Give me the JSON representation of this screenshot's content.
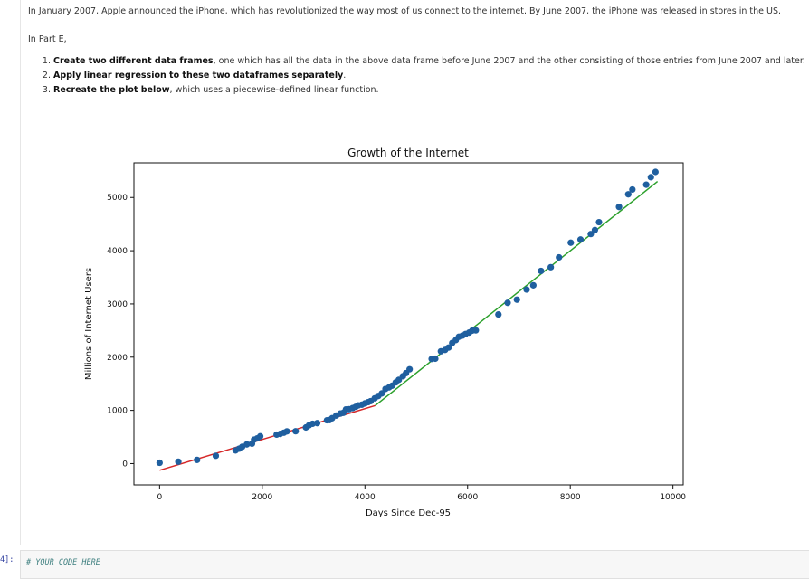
{
  "markdown": {
    "intro": "In January 2007, Apple announced the iPhone, which has revolutionized the way most of us connect to the internet. By June 2007, the iPhone was released in stores in the US.",
    "part_label": "In Part E,",
    "steps": [
      {
        "bold": "Create two different data frames",
        "rest": ", one which has all the data in the above data frame before June 2007 and the other consisting of those entries from June 2007 and later."
      },
      {
        "bold": "Apply linear regression to these two dataframes separately",
        "rest": "."
      },
      {
        "bold": "Recreate the plot below",
        "rest": ", which uses a piecewise-defined linear function."
      }
    ]
  },
  "code_cell": {
    "prompt": "4]:",
    "comment": "# YOUR CODE HERE"
  },
  "colors": {
    "points": "#1f5f9f",
    "fit_before": "#d62728",
    "fit_after": "#2ca02c"
  },
  "chart_data": {
    "type": "scatter",
    "title": "Growth of the Internet",
    "xlabel": "Days Since Dec-95",
    "ylabel": "Millions of Internet Users",
    "xlim": [
      -500,
      10200
    ],
    "ylim": [
      -400,
      5650
    ],
    "xticks": [
      0,
      2000,
      4000,
      6000,
      8000,
      10000
    ],
    "yticks": [
      0,
      1000,
      2000,
      3000,
      4000,
      5000
    ],
    "grid": false,
    "series": [
      {
        "x": [
          0,
          365,
          730,
          1095,
          1480,
          1550,
          1610,
          1700,
          1800,
          1840,
          1900,
          1960,
          2280,
          2350,
          2420,
          2480,
          2650,
          2850,
          2910,
          2980,
          3070,
          3260,
          3310,
          3360,
          3440,
          3520,
          3580,
          3630,
          3690,
          3760,
          3820,
          3870,
          3940,
          4000,
          4060,
          4110,
          4190,
          4260,
          4330,
          4400,
          4470,
          4530,
          4600,
          4660,
          4740,
          4800,
          4870,
          5300,
          5370,
          5480,
          5560,
          5630,
          5700,
          5770,
          5830,
          5900,
          5960,
          6030,
          6090,
          6160,
          6600,
          6780,
          6960,
          7150,
          7280,
          7430,
          7620,
          7780,
          8010,
          8200,
          8400,
          8480,
          8560,
          8950,
          9130,
          9210,
          9480,
          9570,
          9660
        ],
        "y": [
          16,
          36,
          70,
          147,
          248,
          281,
          317,
          361,
          375,
          451,
          474,
          513,
          544,
          558,
          580,
          606,
          608,
          679,
          719,
          748,
          760,
          814,
          817,
          853,
          902,
          940,
          955,
          1018,
          1022,
          1043,
          1067,
          1093,
          1106,
          1131,
          1154,
          1173,
          1226,
          1270,
          1319,
          1402,
          1431,
          1463,
          1526,
          1574,
          1642,
          1700,
          1772,
          1966,
          1971,
          2110,
          2135,
          2180,
          2267,
          2320,
          2383,
          2405,
          2435,
          2462,
          2498,
          2503,
          2802,
          3020,
          3080,
          3270,
          3350,
          3620,
          3690,
          3875,
          4150,
          4210,
          4313,
          4388,
          4536,
          4822,
          5060,
          5150,
          5240,
          5380,
          5480
        ]
      }
    ],
    "fit_lines": [
      {
        "segment": "before",
        "x": [
          0,
          4200
        ],
        "y": [
          -125,
          1090
        ]
      },
      {
        "segment": "after",
        "x": [
          4200,
          9700
        ],
        "y": [
          1090,
          5300
        ]
      }
    ]
  }
}
